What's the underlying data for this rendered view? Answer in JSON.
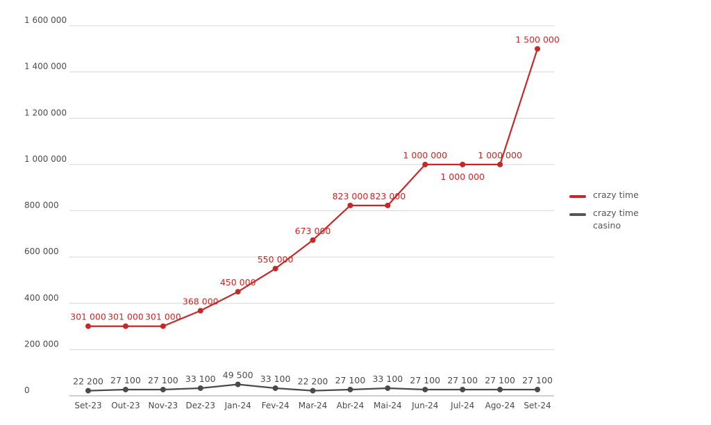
{
  "chart_data": {
    "type": "line",
    "categories": [
      "Set-23",
      "Out-23",
      "Nov-23",
      "Dez-23",
      "Jan-24",
      "Fev-24",
      "Mar-24",
      "Abr-24",
      "Mai-24",
      "Jun-24",
      "Jul-24",
      "Ago-24",
      "Set-24"
    ],
    "y_ticks": [
      "0",
      "200 000",
      "400 000",
      "600 000",
      "800 000",
      "1 000 000",
      "1 200 000",
      "1 400 000",
      "1 600 000"
    ],
    "ylim": [
      0,
      1600000
    ],
    "grid": true,
    "legend_position": "right",
    "series": [
      {
        "name": "crazy time",
        "color": "#c62828",
        "values": [
          301000,
          301000,
          301000,
          368000,
          450000,
          550000,
          673000,
          823000,
          823000,
          1000000,
          1000000,
          1000000,
          1500000
        ],
        "labels": [
          "301 000",
          "301 000",
          "301 000",
          "368 000",
          "450 000",
          "550 000",
          "673 000",
          "823 000",
          "823 000",
          "1 000 000",
          "1 000 000",
          "1 000 000",
          "1 500 000"
        ]
      },
      {
        "name": "crazy time casino",
        "color": "#4a4a4a",
        "values": [
          22200,
          27100,
          27100,
          33100,
          49500,
          33100,
          22200,
          27100,
          33100,
          27100,
          27100,
          27100,
          27100
        ],
        "labels": [
          "22 200",
          "27 100",
          "27 100",
          "33 100",
          "49 500",
          "33 100",
          "22 200",
          "27 100",
          "33 100",
          "27 100",
          "27 100",
          "27 100",
          "27 100"
        ]
      }
    ]
  },
  "legend": {
    "items": [
      {
        "label": "crazy time",
        "color": "#c62828"
      },
      {
        "label": "crazy time casino",
        "color": "#555555"
      }
    ]
  }
}
